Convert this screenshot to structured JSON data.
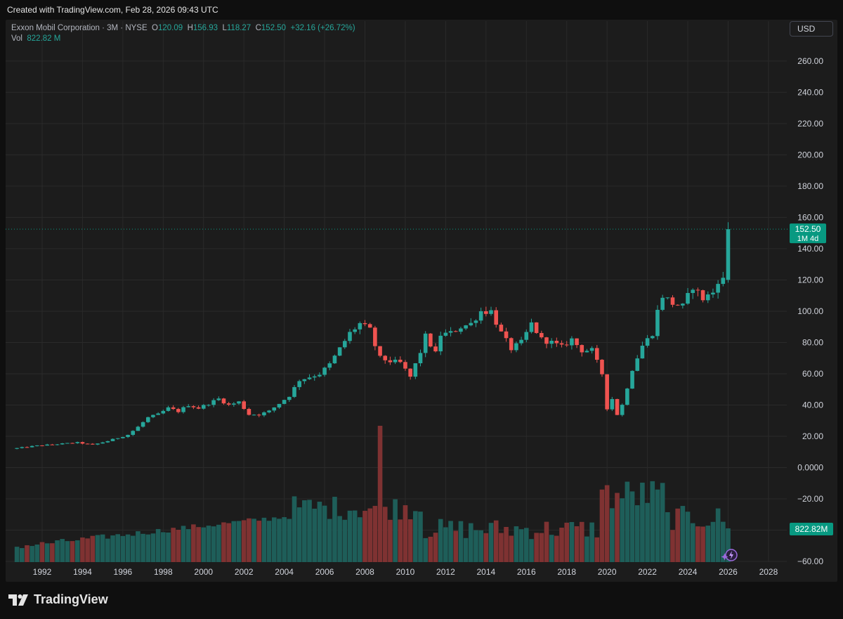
{
  "header": {
    "created_text": "Created with TradingView.com, Feb 28, 2026 09:43 UTC"
  },
  "legend": {
    "symbol": "Exxon Mobil Corporation · 3M · NYSE",
    "o_label": "O",
    "o_value": "120.09",
    "h_label": "H",
    "h_value": "156.93",
    "l_label": "L",
    "l_value": "118.27",
    "c_label": "C",
    "c_value": "152.50",
    "change": "+32.16 (+26.72%)",
    "vol_label": "Vol",
    "vol_value": "822.82 M"
  },
  "currency_button": "USD",
  "price_badge": {
    "value": "152.50",
    "countdown": "1M 4d"
  },
  "volume_badge": "822.82M",
  "brand": "TradingView",
  "colors": {
    "up": "#26a69a",
    "down": "#ef5350",
    "vol_up": "#1e5e59",
    "vol_down": "#7f3232",
    "badge": "#089981"
  },
  "chart_data": {
    "type": "candlestick",
    "price_axis": {
      "ticks": [
        "260.00",
        "240.00",
        "220.00",
        "200.00",
        "180.00",
        "160.00",
        "140.00",
        "120.00",
        "100.00",
        "80.00",
        "60.00",
        "40.00",
        "20.00",
        "0.0000",
        "−20.00",
        "−40.00",
        "−60.00"
      ],
      "range": [
        -60,
        260
      ]
    },
    "time_axis": {
      "ticks": [
        "1992",
        "1994",
        "1996",
        "1998",
        "2000",
        "2002",
        "2004",
        "2006",
        "2008",
        "2010",
        "2012",
        "2014",
        "2016",
        "2018",
        "2020",
        "2022",
        "2024",
        "2026",
        "2028"
      ]
    },
    "grid": true,
    "last_price": 152.5,
    "anchors": [
      {
        "t": 1990.75,
        "p": 12
      },
      {
        "t": 1992.0,
        "p": 14
      },
      {
        "t": 1993.0,
        "p": 15
      },
      {
        "t": 1994.0,
        "p": 16
      },
      {
        "t": 1994.75,
        "p": 14.5
      },
      {
        "t": 1995.5,
        "p": 17
      },
      {
        "t": 1996.5,
        "p": 21
      },
      {
        "t": 1997.0,
        "p": 26
      },
      {
        "t": 1997.5,
        "p": 32
      },
      {
        "t": 1998.0,
        "p": 34
      },
      {
        "t": 1998.5,
        "p": 38
      },
      {
        "t": 1999.0,
        "p": 36
      },
      {
        "t": 1999.5,
        "p": 40
      },
      {
        "t": 2000.0,
        "p": 38
      },
      {
        "t": 2000.5,
        "p": 41
      },
      {
        "t": 2001.0,
        "p": 44
      },
      {
        "t": 2001.5,
        "p": 40
      },
      {
        "t": 2002.0,
        "p": 42
      },
      {
        "t": 2002.5,
        "p": 34
      },
      {
        "t": 2003.0,
        "p": 34
      },
      {
        "t": 2003.5,
        "p": 36
      },
      {
        "t": 2004.0,
        "p": 41
      },
      {
        "t": 2004.5,
        "p": 46
      },
      {
        "t": 2005.0,
        "p": 56
      },
      {
        "t": 2005.5,
        "p": 58
      },
      {
        "t": 2006.0,
        "p": 60
      },
      {
        "t": 2006.5,
        "p": 66
      },
      {
        "t": 2007.0,
        "p": 76
      },
      {
        "t": 2007.5,
        "p": 86
      },
      {
        "t": 2008.0,
        "p": 92
      },
      {
        "t": 2008.5,
        "p": 88
      },
      {
        "t": 2008.75,
        "p": 78
      },
      {
        "t": 2009.0,
        "p": 70
      },
      {
        "t": 2009.5,
        "p": 68
      },
      {
        "t": 2010.0,
        "p": 67
      },
      {
        "t": 2010.5,
        "p": 58
      },
      {
        "t": 2011.0,
        "p": 74
      },
      {
        "t": 2011.25,
        "p": 84
      },
      {
        "t": 2011.75,
        "p": 73
      },
      {
        "t": 2012.0,
        "p": 85
      },
      {
        "t": 2012.5,
        "p": 86
      },
      {
        "t": 2013.0,
        "p": 90
      },
      {
        "t": 2013.5,
        "p": 92
      },
      {
        "t": 2014.0,
        "p": 100
      },
      {
        "t": 2014.5,
        "p": 100
      },
      {
        "t": 2015.0,
        "p": 86
      },
      {
        "t": 2015.5,
        "p": 76
      },
      {
        "t": 2016.0,
        "p": 80
      },
      {
        "t": 2016.5,
        "p": 92
      },
      {
        "t": 2017.0,
        "p": 82
      },
      {
        "t": 2017.5,
        "p": 80
      },
      {
        "t": 2018.0,
        "p": 77
      },
      {
        "t": 2018.5,
        "p": 82
      },
      {
        "t": 2019.0,
        "p": 75
      },
      {
        "t": 2019.5,
        "p": 75
      },
      {
        "t": 2020.0,
        "p": 60
      },
      {
        "t": 2020.25,
        "p": 38
      },
      {
        "t": 2020.5,
        "p": 44
      },
      {
        "t": 2020.75,
        "p": 34
      },
      {
        "t": 2021.0,
        "p": 40
      },
      {
        "t": 2021.5,
        "p": 63
      },
      {
        "t": 2022.0,
        "p": 78
      },
      {
        "t": 2022.5,
        "p": 86
      },
      {
        "t": 2022.75,
        "p": 100
      },
      {
        "t": 2023.0,
        "p": 110
      },
      {
        "t": 2023.5,
        "p": 105
      },
      {
        "t": 2024.0,
        "p": 103
      },
      {
        "t": 2024.5,
        "p": 116
      },
      {
        "t": 2025.0,
        "p": 108
      },
      {
        "t": 2025.5,
        "p": 112
      },
      {
        "t": 2025.75,
        "p": 120
      }
    ],
    "last_candle": {
      "t": 2026.0,
      "open": 120.09,
      "high": 156.93,
      "low": 118.27,
      "close": 152.5
    },
    "volume_peak": {
      "t": 2008.75
    }
  }
}
